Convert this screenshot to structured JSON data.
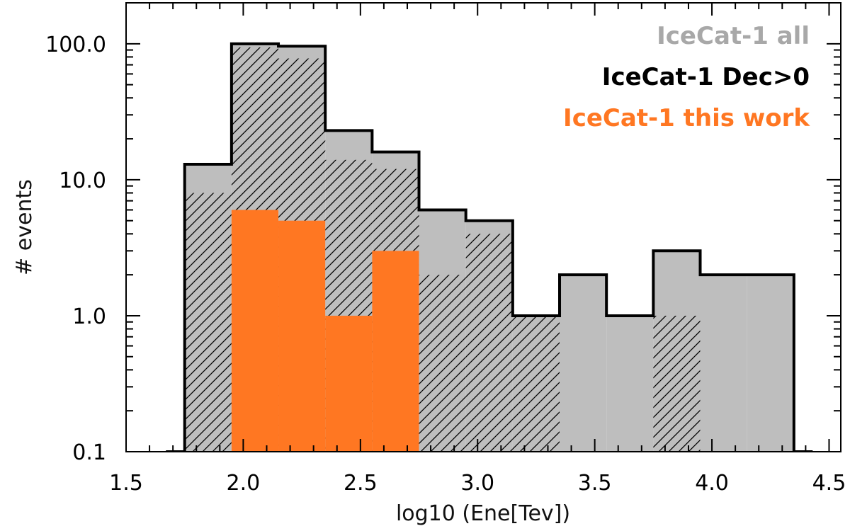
{
  "chart_data": {
    "type": "histogram",
    "xlabel": "log10 (Ene[Tev])",
    "ylabel": "# events",
    "xlim": [
      1.5,
      4.55
    ],
    "ylim": [
      0.1,
      200
    ],
    "yscale": "log",
    "xticks": [
      {
        "value": 1.5,
        "label": "1.5"
      },
      {
        "value": 2.0,
        "label": "2.0"
      },
      {
        "value": 2.5,
        "label": "2.5"
      },
      {
        "value": 3.0,
        "label": "3.0"
      },
      {
        "value": 3.5,
        "label": "3.5"
      },
      {
        "value": 4.0,
        "label": "4.0"
      },
      {
        "value": 4.5,
        "label": "4.5"
      }
    ],
    "yticks": [
      {
        "value": 0.1,
        "label": "0.1"
      },
      {
        "value": 1.0,
        "label": "1.0"
      },
      {
        "value": 10.0,
        "label": "10.0"
      },
      {
        "value": 100.0,
        "label": "100.0"
      }
    ],
    "bin_edges": [
      1.75,
      1.95,
      2.15,
      2.35,
      2.55,
      2.75,
      2.95,
      3.15,
      3.35,
      3.55,
      3.75,
      3.95,
      4.15,
      4.35
    ],
    "series": [
      {
        "name": "IceCat-1 all",
        "color": "#bebebe",
        "style": "filled-outline",
        "values": [
          13,
          100,
          96,
          23,
          16,
          6,
          5,
          1,
          2,
          1,
          3,
          2,
          2
        ]
      },
      {
        "name": "IceCat-1 Dec>0",
        "color": "#000000",
        "style": "hatched",
        "values": [
          8,
          94,
          78,
          14,
          12,
          2,
          4,
          1,
          0,
          0,
          1,
          0,
          0
        ]
      },
      {
        "name": "IceCat-1 this work",
        "color": "#ff7722",
        "style": "filled",
        "values": [
          0,
          6,
          5,
          1,
          3,
          0,
          0,
          0,
          0,
          0,
          0,
          0,
          0
        ]
      }
    ],
    "legend": {
      "placement": "top-right",
      "entries": [
        {
          "label": "IceCat-1 all",
          "color": "#a8a8a8"
        },
        {
          "label": "IceCat-1 Dec>0",
          "color": "#000000"
        },
        {
          "label": "IceCat-1 this work",
          "color": "#ff7722"
        }
      ]
    }
  }
}
